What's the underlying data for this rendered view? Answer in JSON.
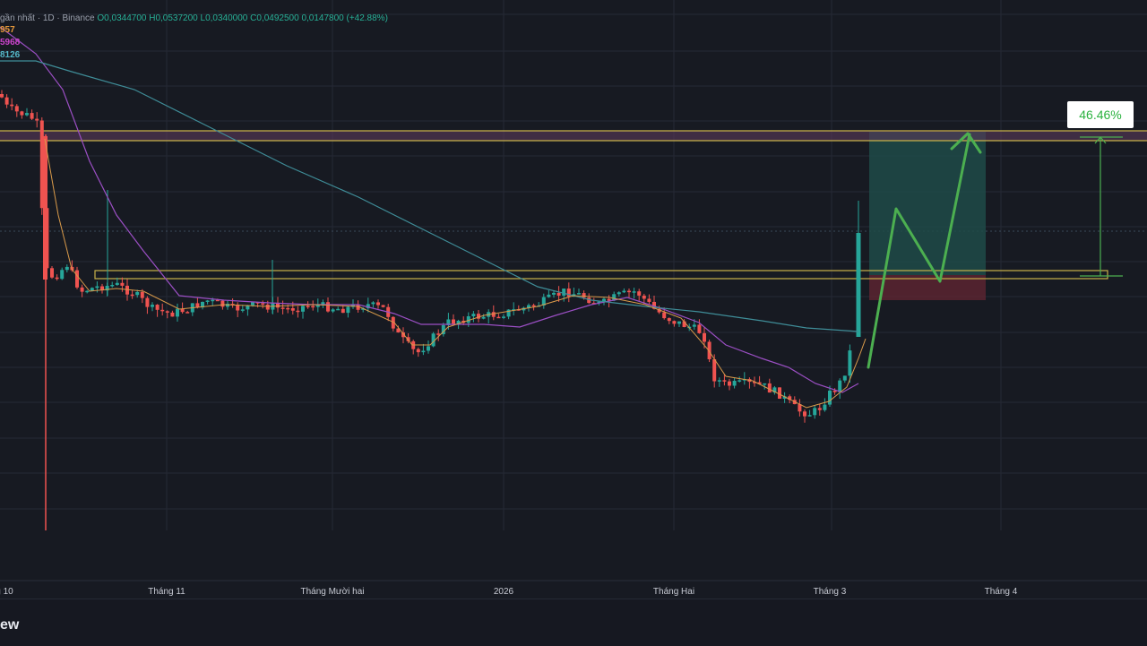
{
  "header": {
    "symbol_text": "gần nhất · 1D · Binance",
    "open": "O0,0344700",
    "high": "H0,0537200",
    "low": "L0,0340000",
    "close": "C0,0492500",
    "change": "0,0147800 (+42.88%)"
  },
  "ma_labels": [
    {
      "text": "957",
      "color": "#e89a3c"
    },
    {
      "text": "5968",
      "color": "#cc44cc"
    },
    {
      "text": "8126",
      "color": "#55b8c9"
    }
  ],
  "footer": {
    "brand_text": "ew"
  },
  "measure": {
    "percent_label": "46.46%"
  },
  "colors": {
    "up": "#26a69a",
    "down": "#ef5350",
    "ma_fast": "#d99a4a",
    "ma_mid": "#9b4fc4",
    "ma_slow": "#3f8d98",
    "zone": "#c8b24a",
    "projection": "#4caf50",
    "target_zone": "#1f4b48",
    "stop_zone": "#5a2530"
  },
  "chart_data": {
    "type": "candlestick",
    "x_tick_labels": [
      "g 10",
      "Tháng 11",
      "Tháng Mười hai",
      "2026",
      "Tháng Hai",
      "Tháng 3",
      "Tháng 4"
    ],
    "price_scale": "hidden",
    "trend": "spike down early, long sideways range, dip, then a strong breakout candle",
    "last_candle_change_pct": 42.88,
    "projected_move_pct": 46.46,
    "horizontal_zones": [
      "resistance near recent high",
      "breakout support zone"
    ],
    "moving_averages": 3,
    "grid": true
  }
}
